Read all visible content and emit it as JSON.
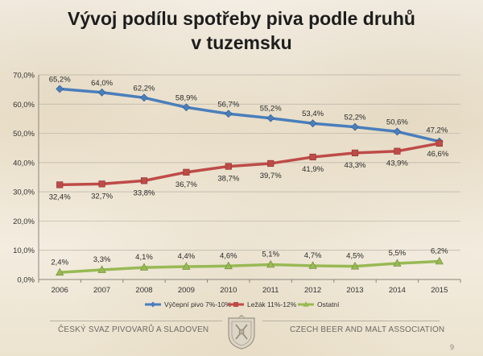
{
  "title": {
    "line1": "Vývoj podílu spotřeby piva podle druhů",
    "line2": "v tuzemsku"
  },
  "chart_data": {
    "type": "line",
    "title": "Vývoj podílu spotřeby piva podle druhů v tuzemsku",
    "xlabel": "",
    "ylabel": "",
    "ylim": [
      0,
      70
    ],
    "y_ticks": [
      "0,0%",
      "10,0%",
      "20,0%",
      "30,0%",
      "40,0%",
      "50,0%",
      "60,0%",
      "70,0%"
    ],
    "grid": true,
    "legend_position": "bottom",
    "categories": [
      "2006",
      "2007",
      "2008",
      "2009",
      "2010",
      "2011",
      "2012",
      "2013",
      "2014",
      "2015"
    ],
    "series": [
      {
        "name": "Výčepní pivo 7%-10%",
        "color": "#4a7ebb",
        "values": [
          65.2,
          64.0,
          62.2,
          58.9,
          56.7,
          55.2,
          53.4,
          52.2,
          50.6,
          47.2
        ],
        "labels": [
          "65,2%",
          "64,0%",
          "62,2%",
          "58,9%",
          "56,7%",
          "55,2%",
          "53,4%",
          "52,2%",
          "50,6%",
          "47,2%"
        ]
      },
      {
        "name": "Ležák 11%-12%",
        "color": "#be4b48",
        "values": [
          32.4,
          32.7,
          33.8,
          36.7,
          38.7,
          39.7,
          41.9,
          43.3,
          43.9,
          46.6
        ],
        "labels": [
          "32,4%",
          "32,7%",
          "33,8%",
          "36,7%",
          "38,7%",
          "39,7%",
          "41,9%",
          "43,3%",
          "43,9%",
          "46,6%"
        ]
      },
      {
        "name": "Ostatní",
        "color": "#98b954",
        "values": [
          2.4,
          3.3,
          4.1,
          4.4,
          4.6,
          5.1,
          4.7,
          4.5,
          5.5,
          6.2
        ],
        "labels": [
          "2,4%",
          "3,3%",
          "4,1%",
          "4,4%",
          "4,6%",
          "5,1%",
          "4,7%",
          "4,5%",
          "5,5%",
          "6,2%"
        ]
      }
    ]
  },
  "footer": {
    "left_text": "ČESKÝ SVAZ PIVOVARŮ A SLADOVEN",
    "right_text": "CZECH BEER AND MALT ASSOCIATION",
    "page_number": "9",
    "logo_icon": "association-seal-icon"
  }
}
